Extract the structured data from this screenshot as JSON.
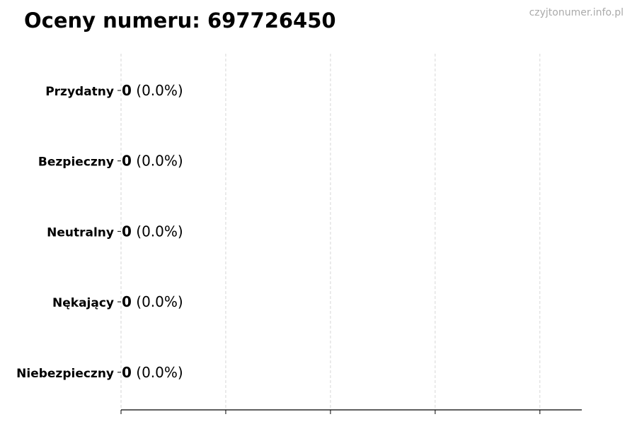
{
  "chart_data": {
    "type": "bar",
    "orientation": "horizontal",
    "title": "Oceny numeru: 697726450",
    "watermark": "czyjtonumer.info.pl",
    "categories": [
      "Przydatny",
      "Bezpieczny",
      "Neutralny",
      "Nękający",
      "Niebezpieczny"
    ],
    "values": [
      0,
      0,
      0,
      0,
      0
    ],
    "data_labels": [
      {
        "count": "0",
        "percent": "(0.0%)"
      },
      {
        "count": "0",
        "percent": "(0.0%)"
      },
      {
        "count": "0",
        "percent": "(0.0%)"
      },
      {
        "count": "0",
        "percent": "(0.0%)"
      },
      {
        "count": "0",
        "percent": "(0.0%)"
      }
    ],
    "xlim": [
      0,
      4.4
    ],
    "xticks": [
      0,
      1,
      2,
      3,
      4
    ],
    "xtick_labels_shown": false,
    "grid": "x, dashed",
    "grid_color": "#cccccc",
    "bar_edge_color": "#000000"
  }
}
